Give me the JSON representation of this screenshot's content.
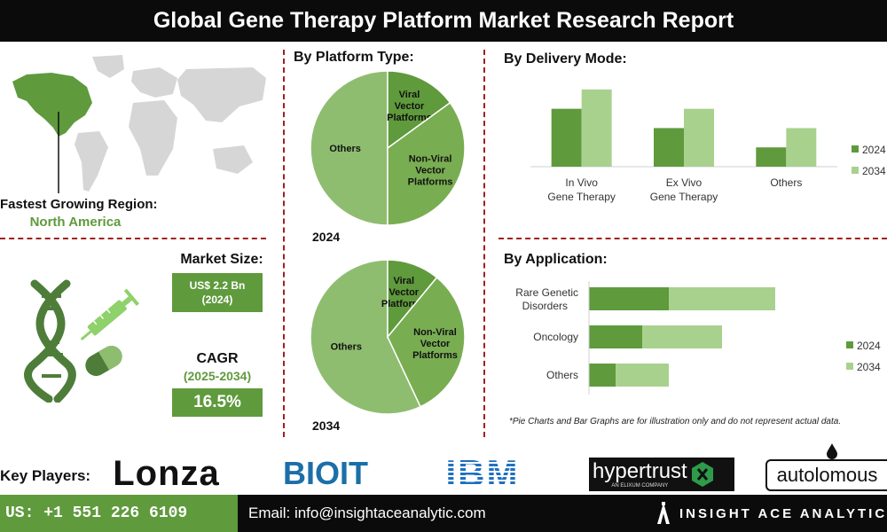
{
  "title": "Global Gene Therapy Platform Market Research Report",
  "region": {
    "label": "Fastest Growing Region:",
    "value": "North America"
  },
  "market": {
    "size_label": "Market Size:",
    "size_value_line1": "US$ 2.2 Bn",
    "size_value_line2": "(2024)",
    "cagr_label": "CAGR",
    "cagr_period": "(2025-2034)",
    "cagr_value": "16.5%"
  },
  "platform_type": {
    "title": "By Platform Type:"
  },
  "delivery_mode": {
    "title": "By  Delivery Mode:"
  },
  "application": {
    "title": "By Application:"
  },
  "note": "*Pie Charts and Bar Graphs are for illustration only and do not represent actual data.",
  "key_players": {
    "label": "Key Players:",
    "logos": [
      "Lonza",
      "BIOIT",
      "IBM",
      "hypertrust",
      "autolomous"
    ],
    "hypertrust_tagline": "AN ELIXUM COMPANY"
  },
  "footer": {
    "phone": "US: +1 551 226 6109",
    "email": "Email: info@insightaceanalytic.com",
    "brand": "INSIGHT ACE ANALYTIC"
  },
  "colors": {
    "dark_green": "#5f9a3c",
    "mid_green": "#79ad52",
    "light_green": "#a9d18e",
    "pie_green": "#8fbd70",
    "divider": "#a31f1f"
  },
  "chart_data": [
    {
      "type": "pie",
      "year_label": "2024",
      "slices": [
        {
          "label": "Others",
          "value": 50
        },
        {
          "label": "Viral Vector Platforms",
          "value": 15
        },
        {
          "label": "Non-Viral Vector Platforms",
          "value": 35
        }
      ]
    },
    {
      "type": "pie",
      "year_label": "2034",
      "slices": [
        {
          "label": "Others",
          "value": 57
        },
        {
          "label": "Viral Vector Platforms",
          "value": 11
        },
        {
          "label": "Non-Viral Vector Platforms",
          "value": 32
        }
      ]
    },
    {
      "type": "bar",
      "categories": [
        "In Vivo Gene Therapy",
        "Ex Vivo Gene Therapy",
        "Others"
      ],
      "series": [
        {
          "name": "2024",
          "values": [
            3,
            2,
            1
          ]
        },
        {
          "name": "2034",
          "values": [
            4,
            3,
            2
          ]
        }
      ],
      "ylim": [
        0,
        4.5
      ],
      "legend": "right",
      "grid": false
    },
    {
      "type": "bar",
      "orientation": "horizontal",
      "stacked": true,
      "categories": [
        "Rare Genetic Disorders",
        "Oncology",
        "Others"
      ],
      "series": [
        {
          "name": "2024",
          "values": [
            3,
            2,
            1
          ]
        },
        {
          "name": "2034",
          "values": [
            4,
            3,
            2
          ]
        }
      ],
      "xlim": [
        0,
        8
      ],
      "legend": "right",
      "grid": false
    }
  ]
}
